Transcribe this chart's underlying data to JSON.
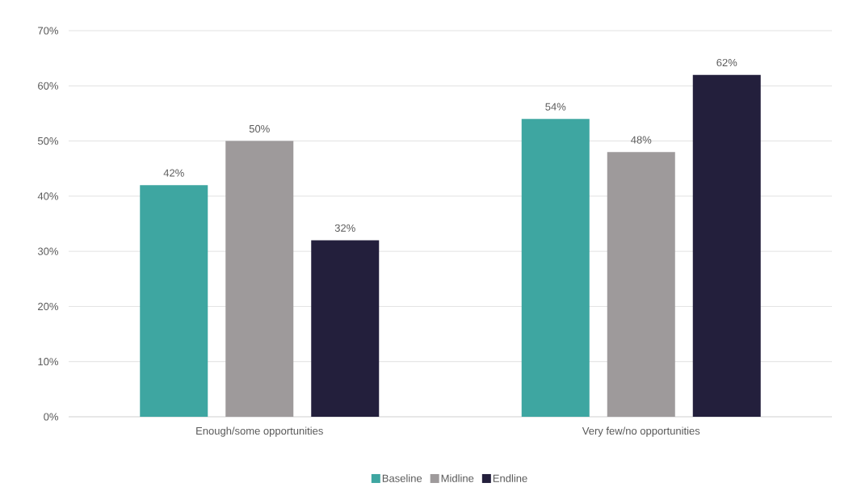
{
  "chart_data": {
    "type": "bar",
    "categories": [
      "Enough/some opportunities",
      "Very few/no opportunities"
    ],
    "series": [
      {
        "name": "Baseline",
        "color": "#3ea6a1",
        "values": [
          42,
          54
        ],
        "value_labels": [
          "42%",
          "54%"
        ]
      },
      {
        "name": "Midline",
        "color": "#9e9a9b",
        "values": [
          50,
          48
        ],
        "value_labels": [
          "50%",
          "48%"
        ]
      },
      {
        "name": "Endline",
        "color": "#231f3c",
        "values": [
          32,
          62
        ],
        "value_labels": [
          "32%",
          "62%"
        ]
      }
    ],
    "ylim": [
      0,
      70
    ],
    "yticks": [
      {
        "value": 0,
        "label": "0%"
      },
      {
        "value": 10,
        "label": "10%"
      },
      {
        "value": 20,
        "label": "20%"
      },
      {
        "value": 30,
        "label": "30%"
      },
      {
        "value": 40,
        "label": "40%"
      },
      {
        "value": 50,
        "label": "50%"
      },
      {
        "value": 60,
        "label": "60%"
      },
      {
        "value": 70,
        "label": "70%"
      }
    ],
    "grid": "y",
    "legend": "bottom"
  }
}
